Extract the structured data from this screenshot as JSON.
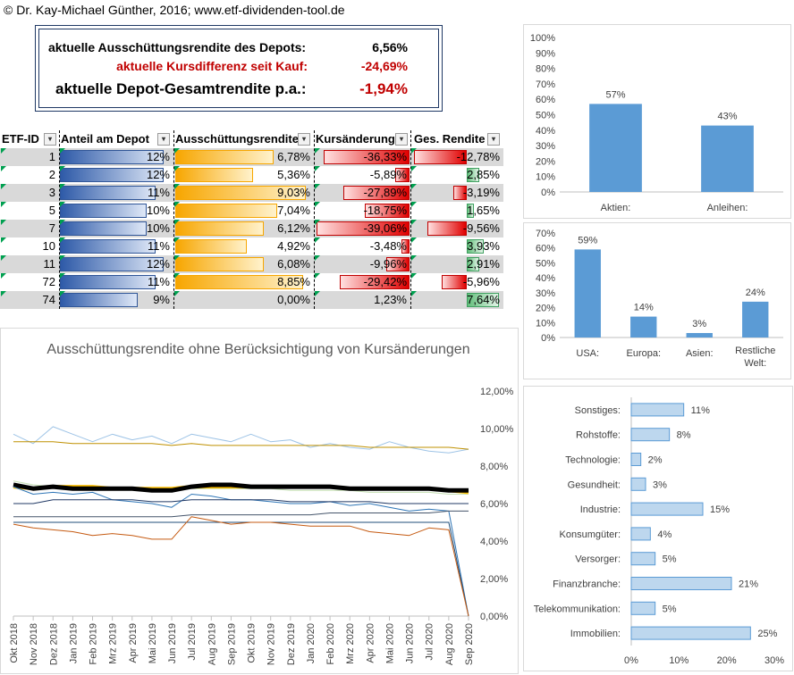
{
  "copyright": "© Dr. Kay-Michael Günther, 2016; www.etf-dividenden-tool.de",
  "summary": {
    "yield_label": "aktuelle Ausschüttungsrendite des Depots:",
    "yield_value": "6,56%",
    "price_label": "aktuelle Kursdifferenz seit Kauf:",
    "price_value": "-24,69%",
    "total_label": "aktuelle Depot-Gesamtrendite p.a.:",
    "total_value": "-1,94%"
  },
  "table": {
    "headers": [
      "ETF-ID",
      "Anteil am Depot",
      "Ausschüttungsrendite",
      "Kursänderung",
      "Ges. Rendite"
    ],
    "rows": [
      {
        "id": "1",
        "anteil": "12%",
        "anteil_v": 12,
        "ausschuettung": "6,78%",
        "aus_v": 6.78,
        "kurs": "-36,33%",
        "kurs_v": -36.33,
        "ges": "-12,78%",
        "ges_v": -12.78
      },
      {
        "id": "2",
        "anteil": "12%",
        "anteil_v": 12,
        "ausschuettung": "5,36%",
        "aus_v": 5.36,
        "kurs": "-5,89%",
        "kurs_v": -5.89,
        "ges": "2,85%",
        "ges_v": 2.85
      },
      {
        "id": "3",
        "anteil": "11%",
        "anteil_v": 11,
        "ausschuettung": "9,03%",
        "aus_v": 9.03,
        "kurs": "-27,89%",
        "kurs_v": -27.89,
        "ges": "-3,19%",
        "ges_v": -3.19
      },
      {
        "id": "5",
        "anteil": "10%",
        "anteil_v": 10,
        "ausschuettung": "7,04%",
        "aus_v": 7.04,
        "kurs": "-18,75%",
        "kurs_v": -18.75,
        "ges": "1,65%",
        "ges_v": 1.65
      },
      {
        "id": "7",
        "anteil": "10%",
        "anteil_v": 10,
        "ausschuettung": "6,12%",
        "aus_v": 6.12,
        "kurs": "-39,06%",
        "kurs_v": -39.06,
        "ges": "-9,56%",
        "ges_v": -9.56
      },
      {
        "id": "10",
        "anteil": "11%",
        "anteil_v": 11,
        "ausschuettung": "4,92%",
        "aus_v": 4.92,
        "kurs": "-3,48%",
        "kurs_v": -3.48,
        "ges": "3,93%",
        "ges_v": 3.93
      },
      {
        "id": "11",
        "anteil": "12%",
        "anteil_v": 12,
        "ausschuettung": "6,08%",
        "aus_v": 6.08,
        "kurs": "-9,96%",
        "kurs_v": -9.96,
        "ges": "2,91%",
        "ges_v": 2.91
      },
      {
        "id": "72",
        "anteil": "11%",
        "anteil_v": 11,
        "ausschuettung": "8,85%",
        "aus_v": 8.85,
        "kurs": "-29,42%",
        "kurs_v": -29.42,
        "ges": "-5,96%",
        "ges_v": -5.96
      },
      {
        "id": "74",
        "anteil": "9%",
        "anteil_v": 9,
        "ausschuettung": "0,00%",
        "aus_v": 0,
        "kurs": "1,23%",
        "kurs_v": 1.23,
        "ges": "7,64%",
        "ges_v": 7.64
      }
    ]
  },
  "colors": {
    "chart_blue": "#5b9bd5",
    "negative_red": "#c00000",
    "border_navy": "#1f3864"
  },
  "chart_data": [
    {
      "type": "bar",
      "categories": [
        "Aktien:",
        "Anleihen:"
      ],
      "values": [
        57,
        43
      ],
      "data_labels": [
        "57%",
        "43%"
      ],
      "ylim": [
        0,
        100
      ],
      "yticks": [
        "0%",
        "10%",
        "20%",
        "30%",
        "40%",
        "50%",
        "60%",
        "70%",
        "80%",
        "90%",
        "100%"
      ],
      "grid": false
    },
    {
      "type": "bar",
      "categories": [
        "USA:",
        "Europa:",
        "Asien:",
        "Restliche Welt:"
      ],
      "values": [
        59,
        14,
        3,
        24
      ],
      "data_labels": [
        "59%",
        "14%",
        "3%",
        "24%"
      ],
      "ylim": [
        0,
        70
      ],
      "yticks": [
        "0%",
        "10%",
        "20%",
        "30%",
        "40%",
        "50%",
        "60%",
        "70%"
      ],
      "grid": false
    },
    {
      "type": "bar",
      "orientation": "horizontal",
      "categories": [
        "Sonstiges:",
        "Rohstoffe:",
        "Technologie:",
        "Gesundheit:",
        "Industrie:",
        "Konsumgüter:",
        "Versorger:",
        "Finanzbranche:",
        "Telekommunikation:",
        "Immobilien:"
      ],
      "values": [
        11,
        8,
        2,
        3,
        15,
        4,
        5,
        21,
        5,
        25
      ],
      "data_labels": [
        "11%",
        "8%",
        "2%",
        "3%",
        "15%",
        "4%",
        "5%",
        "21%",
        "5%",
        "25%"
      ],
      "xlim": [
        0,
        30
      ],
      "xticks": [
        "0%",
        "10%",
        "20%",
        "30%"
      ],
      "grid": false
    },
    {
      "type": "line",
      "title": "Ausschüttungsrendite ohne Berücksichtigung von Kursänderungen",
      "x": [
        "Okt 2018",
        "Nov 2018",
        "Dez 2018",
        "Jan 2019",
        "Feb 2019",
        "Mrz 2019",
        "Apr 2019",
        "Mai 2019",
        "Jun 2019",
        "Jul 2019",
        "Aug 2019",
        "Sep 2019",
        "Okt 2019",
        "Nov 2019",
        "Dez 2019",
        "Jan 2020",
        "Feb 2020",
        "Mrz 2020",
        "Apr 2020",
        "Mai 2020",
        "Jun 2020",
        "Jul 2020",
        "Aug 2020",
        "Sep 2020"
      ],
      "ylim": [
        0,
        12
      ],
      "yticks": [
        "0,00%",
        "2,00%",
        "4,00%",
        "6,00%",
        "8,00%",
        "10,00%",
        "12,00%"
      ],
      "y_axis_position": "right",
      "grid": false,
      "series": [
        {
          "color": "#9dc3e6",
          "width": 1,
          "values": [
            9.7,
            9.2,
            10.1,
            9.7,
            9.3,
            9.7,
            9.4,
            9.6,
            9.2,
            9.7,
            9.5,
            9.3,
            9.7,
            9.3,
            9.4,
            9.0,
            9.2,
            9.0,
            8.9,
            9.3,
            9.0,
            8.8,
            8.7,
            8.9
          ]
        },
        {
          "color": "#bf9000",
          "width": 1,
          "values": [
            9.3,
            9.3,
            9.3,
            9.2,
            9.2,
            9.2,
            9.2,
            9.2,
            9.1,
            9.2,
            9.1,
            9.1,
            9.1,
            9.1,
            9.1,
            9.1,
            9.1,
            9.1,
            9.0,
            9.0,
            9.0,
            9.0,
            9.0,
            8.9
          ]
        },
        {
          "color": "#c5e0b4",
          "width": 1,
          "values": [
            7.2,
            7.0,
            6.9,
            6.9,
            6.9,
            6.8,
            6.8,
            6.8,
            6.7,
            6.8,
            6.8,
            6.8,
            6.8,
            6.8,
            6.7,
            6.7,
            6.7,
            6.7,
            6.6,
            6.6,
            6.6,
            6.6,
            6.5,
            6.5
          ]
        },
        {
          "color": "#ffc000",
          "width": 4,
          "values": [
            6.9,
            6.8,
            6.9,
            6.9,
            6.9,
            6.8,
            6.8,
            6.8,
            6.8,
            6.9,
            6.9,
            6.9,
            6.9,
            6.9,
            6.9,
            6.9,
            6.9,
            6.8,
            6.8,
            6.8,
            6.8,
            6.8,
            6.7,
            6.6
          ]
        },
        {
          "color": "#000000",
          "width": 5,
          "values": [
            7.0,
            6.8,
            6.9,
            6.8,
            6.8,
            6.8,
            6.8,
            6.7,
            6.7,
            6.9,
            7.0,
            7.0,
            6.9,
            6.9,
            6.9,
            6.9,
            6.9,
            6.8,
            6.8,
            6.8,
            6.8,
            6.8,
            6.7,
            6.7
          ]
        },
        {
          "color": "#2e75b6",
          "width": 1,
          "values": [
            6.9,
            6.5,
            6.6,
            6.5,
            6.6,
            6.2,
            6.1,
            6.0,
            5.8,
            6.5,
            6.4,
            6.2,
            6.2,
            6.1,
            6.0,
            6.0,
            6.1,
            5.9,
            6.0,
            5.8,
            5.6,
            5.7,
            5.6,
            0.0
          ]
        },
        {
          "color": "#203864",
          "width": 1,
          "values": [
            6.0,
            6.0,
            6.2,
            6.2,
            6.2,
            6.2,
            6.2,
            6.1,
            6.1,
            6.2,
            6.2,
            6.2,
            6.2,
            6.2,
            6.1,
            6.1,
            6.1,
            6.1,
            6.1,
            6.0,
            6.0,
            6.0,
            6.0,
            6.0
          ]
        },
        {
          "color": "#44546a",
          "width": 1,
          "values": [
            5.3,
            5.3,
            5.3,
            5.3,
            5.3,
            5.3,
            5.3,
            5.3,
            5.3,
            5.4,
            5.4,
            5.4,
            5.4,
            5.4,
            5.4,
            5.4,
            5.5,
            5.5,
            5.5,
            5.5,
            5.5,
            5.5,
            5.6,
            5.6
          ]
        },
        {
          "color": "#1f4e79",
          "width": 1,
          "values": [
            5.0,
            5.0,
            5.0,
            5.0,
            5.0,
            5.0,
            5.0,
            5.0,
            5.0,
            5.0,
            5.0,
            5.0,
            5.0,
            5.0,
            5.0,
            5.0,
            5.0,
            5.0,
            5.0,
            5.0,
            5.0,
            5.0,
            5.0,
            0.0
          ]
        },
        {
          "color": "#c55a11",
          "width": 1,
          "values": [
            4.9,
            4.7,
            4.6,
            4.5,
            4.3,
            4.4,
            4.3,
            4.1,
            4.1,
            5.3,
            5.1,
            4.9,
            5.0,
            5.0,
            4.9,
            4.8,
            4.8,
            4.8,
            4.5,
            4.4,
            4.3,
            4.7,
            4.6,
            0.0
          ]
        }
      ]
    }
  ]
}
